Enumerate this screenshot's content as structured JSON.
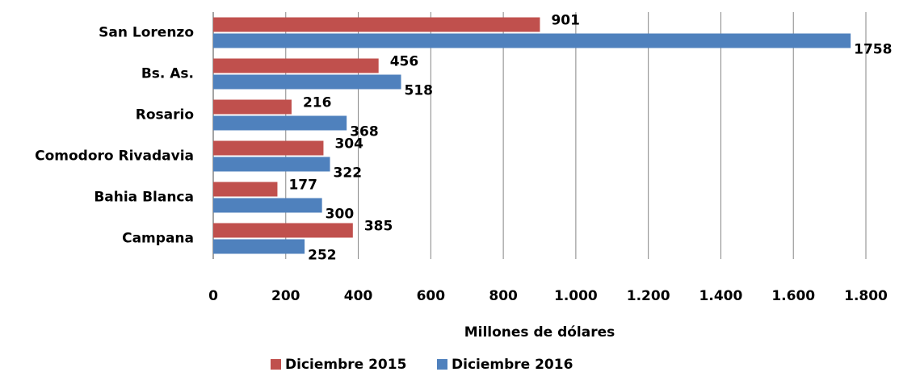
{
  "chart_data": {
    "type": "bar",
    "orientation": "horizontal",
    "x_label": "Millones de dólares",
    "categories": [
      "San Lorenzo",
      "Bs. As.",
      "Rosario",
      "Comodoro Rivadavia",
      "Bahia Blanca",
      "Campana"
    ],
    "series": [
      {
        "name": "Diciembre 2015",
        "color": "#c0504d",
        "values": [
          901,
          456,
          216,
          304,
          177,
          385
        ]
      },
      {
        "name": "Diciembre 2016",
        "color": "#4f81bd",
        "values": [
          1758,
          518,
          368,
          322,
          300,
          252
        ]
      }
    ],
    "xlim": [
      0,
      1800
    ],
    "xticks": [
      0,
      200,
      400,
      600,
      800,
      {
        "value": 1000,
        "label": "1.000"
      },
      {
        "value": 1200,
        "label": "1.200"
      },
      {
        "value": 1400,
        "label": "1.400"
      },
      {
        "value": 1600,
        "label": "1.600"
      },
      {
        "value": 1800,
        "label": "1.800"
      }
    ],
    "grid": true
  }
}
